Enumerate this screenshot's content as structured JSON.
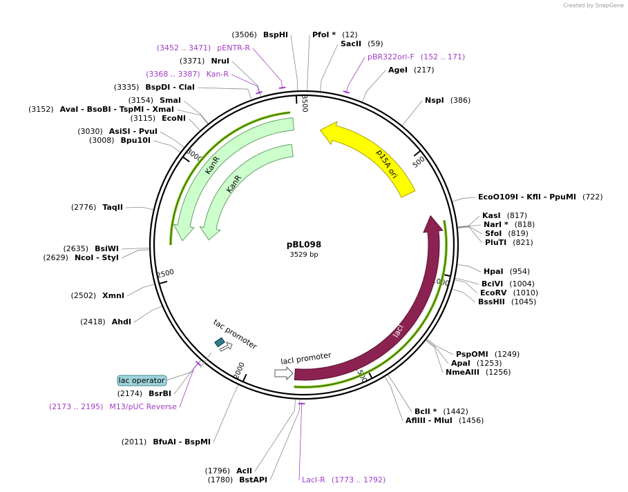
{
  "header": {
    "created_by": "Created by SnapGene"
  },
  "map": {
    "name": "pBL098",
    "length": "3529 bp",
    "total": 3529,
    "ticks": [
      500,
      1000,
      1500,
      2000,
      2500,
      3000,
      3500
    ]
  },
  "sites": [
    {
      "site": "(3506)",
      "enzymes": "BspHI"
    },
    {
      "site": "(3371)",
      "enzymes": "NruI"
    },
    {
      "site": "(3335)",
      "enzymes": "BspDI  - ClaI"
    },
    {
      "site": "(3154)",
      "enzymes": "SmaI"
    },
    {
      "site": "(3152)",
      "enzymes": "AvaI  - BsoBI  - TspMI  - XmaI"
    },
    {
      "site": "(3115)",
      "enzymes": "EcoNI"
    },
    {
      "site": "(3030)",
      "enzymes": "AsiSI  - PvuI"
    },
    {
      "site": "(3008)",
      "enzymes": "Bpu10I"
    },
    {
      "site": "(2776)",
      "enzymes": "TaqII"
    },
    {
      "site": "(2635)",
      "enzymes": "BsiWI"
    },
    {
      "site": "(2629)",
      "enzymes": "NcoI  - StyI"
    },
    {
      "site": "(2502)",
      "enzymes": "XmnI"
    },
    {
      "site": "(2418)",
      "enzymes": "AhdI"
    },
    {
      "site": "(2174)",
      "enzymes": "BsrBI"
    },
    {
      "site": "(2011)",
      "enzymes": "BfuAI  - BspMI"
    },
    {
      "site": "(1796)",
      "enzymes": "AclI"
    },
    {
      "site": "(1780)",
      "enzymes": "BstAPI"
    },
    {
      "site": "(12)",
      "enzymes": "PfoI *"
    },
    {
      "site": "(59)",
      "enzymes": "SacII"
    },
    {
      "site": "(217)",
      "enzymes": "AgeI"
    },
    {
      "site": "(386)",
      "enzymes": "NspI"
    },
    {
      "site": "(722)",
      "enzymes": "EcoO109I  - KflI  - PpuMI"
    },
    {
      "site": "(817)",
      "enzymes": "KasI"
    },
    {
      "site": "(818)",
      "enzymes": "NarI *"
    },
    {
      "site": "(819)",
      "enzymes": "SfoI"
    },
    {
      "site": "(821)",
      "enzymes": "PluTI"
    },
    {
      "site": "(954)",
      "enzymes": "HpaI"
    },
    {
      "site": "(1004)",
      "enzymes": "BciVI"
    },
    {
      "site": "(1010)",
      "enzymes": "EcoRV"
    },
    {
      "site": "(1045)",
      "enzymes": "BssHII"
    },
    {
      "site": "(1249)",
      "enzymes": "PspOMI"
    },
    {
      "site": "(1253)",
      "enzymes": "ApaI"
    },
    {
      "site": "(1256)",
      "enzymes": "NmeAIII"
    },
    {
      "site": "(1442)",
      "enzymes": "BclI *"
    },
    {
      "site": "(1456)",
      "enzymes": "AflIII  - MluI"
    }
  ],
  "primers": [
    {
      "site": "(3452 .. 3471)",
      "name": "pENTR-R"
    },
    {
      "site": "(3368 .. 3387)",
      "name": "Kan-R"
    },
    {
      "site": "(152 .. 171)",
      "name": "pBR322ori-F"
    },
    {
      "site": "(2173 .. 2195)",
      "name": "M13/pUC Reverse"
    },
    {
      "site": "(1773 .. 1792)",
      "name": "LacI-R"
    }
  ],
  "features": [
    {
      "name": "p15A ori"
    },
    {
      "name": "KanR"
    },
    {
      "name": "KanR"
    },
    {
      "name": "lacI"
    },
    {
      "name": "tac promoter"
    },
    {
      "name": "lacI promoter"
    },
    {
      "name": "lac operator"
    }
  ]
}
